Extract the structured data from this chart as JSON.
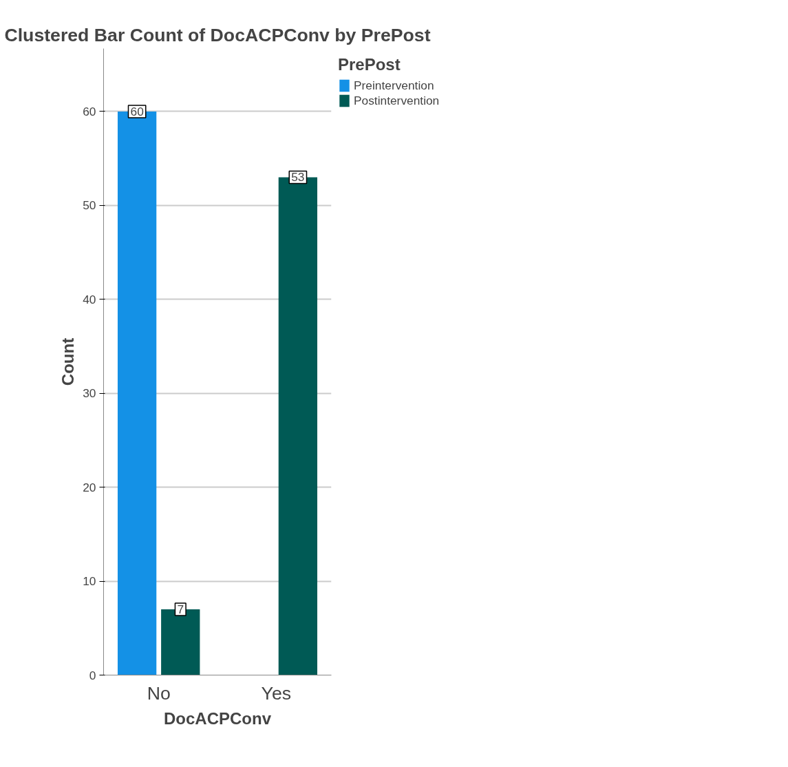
{
  "chart_data": {
    "type": "bar",
    "title": "Clustered Bar Count of DocACPConv by PrePost",
    "xlabel": "DocACPConv",
    "ylabel": "Count",
    "legend_title": "PrePost",
    "categories": [
      "No",
      "Yes"
    ],
    "series": [
      {
        "name": "Preintervention",
        "color": "#1491e6",
        "values": [
          60,
          0
        ],
        "value_labels": [
          "60",
          null
        ]
      },
      {
        "name": "Postintervention",
        "color": "#005a55",
        "values": [
          7,
          53
        ],
        "value_labels": [
          "7",
          "53"
        ]
      }
    ],
    "ylim": [
      0,
      66.7
    ],
    "yticks": [
      0,
      10,
      20,
      30,
      40,
      50,
      60
    ],
    "grid": "y",
    "legend": "top right"
  }
}
